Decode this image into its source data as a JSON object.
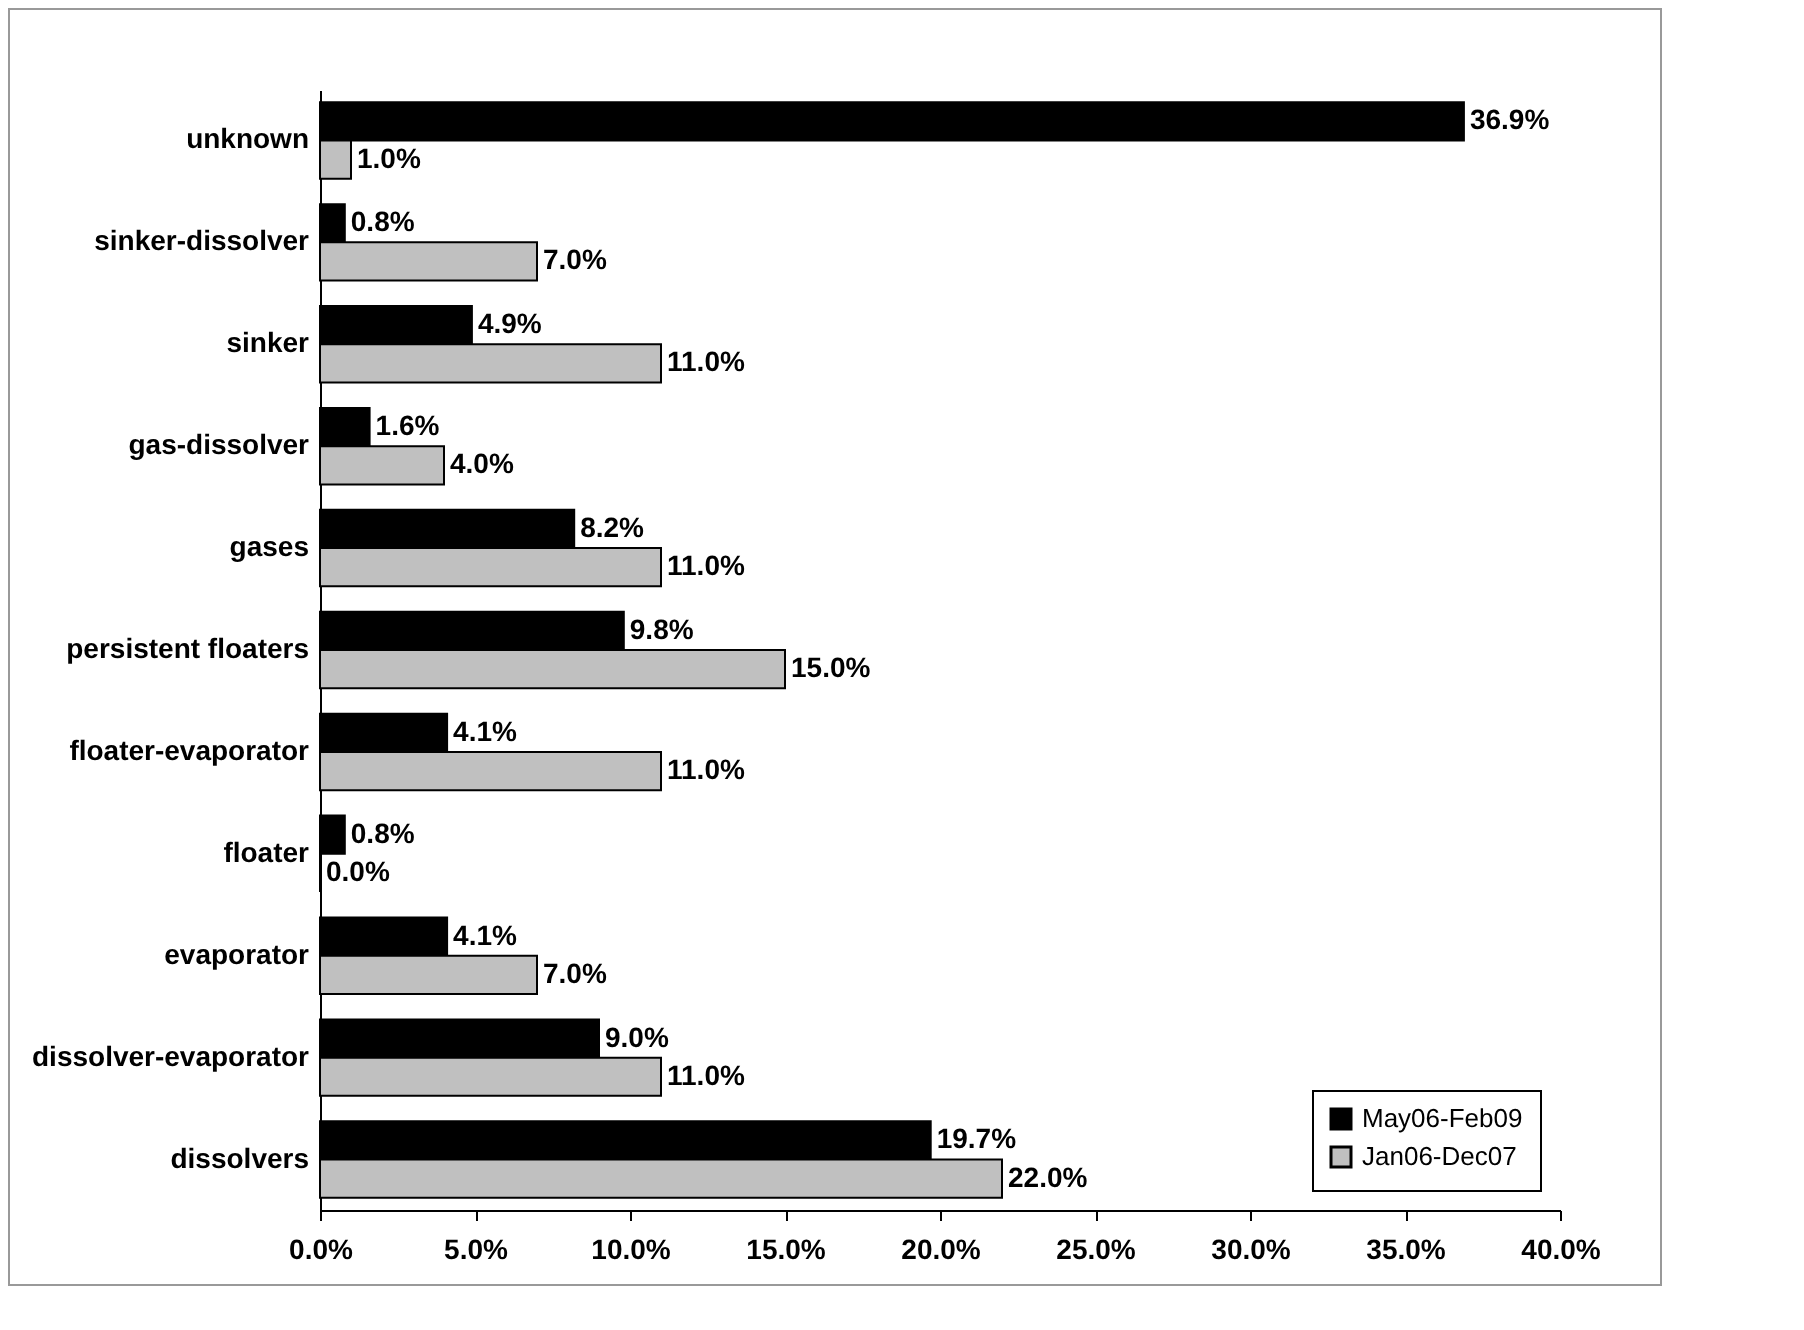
{
  "chart_data": {
    "type": "bar",
    "orientation": "horizontal",
    "categories": [
      "unknown",
      "sinker-dissolver",
      "sinker",
      "gas-dissolver",
      "gases",
      "persistent floaters",
      "floater-evaporator",
      "floater",
      "evaporator",
      "dissolver-evaporator",
      "dissolvers"
    ],
    "series": [
      {
        "name": "May06-Feb09",
        "color": "#000000",
        "values": [
          36.9,
          0.8,
          4.9,
          1.6,
          8.2,
          9.8,
          4.1,
          0.8,
          4.1,
          9.0,
          19.7
        ],
        "value_labels": [
          "36.9%",
          "0.8%",
          "4.9%",
          "1.6%",
          "8.2%",
          "9.8%",
          "4.1%",
          "0.8%",
          "4.1%",
          "9.0%",
          "19.7%"
        ]
      },
      {
        "name": "Jan06-Dec07",
        "color": "#c0c0c0",
        "values": [
          1.0,
          7.0,
          11.0,
          4.0,
          11.0,
          15.0,
          11.0,
          0.0,
          7.0,
          11.0,
          22.0
        ],
        "value_labels": [
          "1.0%",
          "7.0%",
          "11.0%",
          "4.0%",
          "11.0%",
          "15.0%",
          "11.0%",
          "0.0%",
          "7.0%",
          "11.0%",
          "22.0%"
        ]
      }
    ],
    "xlim": [
      0,
      40
    ],
    "xticks": [
      {
        "value": 0,
        "label": "0.0%"
      },
      {
        "value": 5,
        "label": "5.0%"
      },
      {
        "value": 10,
        "label": "10.0%"
      },
      {
        "value": 15,
        "label": "15.0%"
      },
      {
        "value": 20,
        "label": "20.0%"
      },
      {
        "value": 25,
        "label": "25.0%"
      },
      {
        "value": 30,
        "label": "30.0%"
      },
      {
        "value": 35,
        "label": "35.0%"
      },
      {
        "value": 40,
        "label": "40.0%"
      }
    ],
    "grid": false,
    "legend": "bottom right"
  }
}
